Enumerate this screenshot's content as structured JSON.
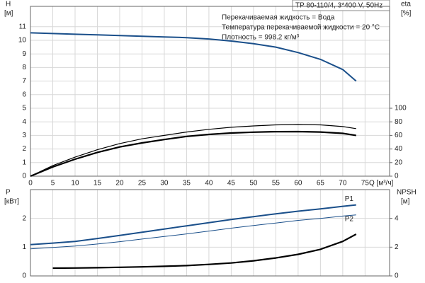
{
  "chart_data": [
    {
      "type": "line",
      "header": "TP 80-110/4, 3*400 V, 50Hz",
      "annotations": [
        "Перекачиваемая жидкость = Вода",
        "Температура перекачиваемой жидкости = 20 °C",
        "Плотность = 998.2 кг/м³"
      ],
      "ylabel": "H",
      "yunit": "[м]",
      "y2label": "eta",
      "y2unit": "[%]",
      "xlabel": "Q [м³/ч]",
      "x": [
        0,
        5,
        10,
        15,
        20,
        25,
        30,
        35,
        40,
        45,
        50,
        55,
        60,
        65,
        70,
        73
      ],
      "xlim": [
        0,
        80.5
      ],
      "xticks": [
        0,
        5,
        10,
        15,
        20,
        25,
        30,
        35,
        40,
        45,
        50,
        55,
        60,
        65,
        70,
        75
      ],
      "ylim": [
        0,
        12.5
      ],
      "yticks": [
        0,
        1,
        2,
        3,
        4,
        5,
        6,
        7,
        8,
        9,
        10,
        11
      ],
      "y2lim": [
        0,
        250
      ],
      "y2ticks": [
        0,
        20,
        40,
        60,
        80,
        100
      ],
      "grid": true,
      "series": [
        {
          "color": "#1a4f8a",
          "width": 2,
          "values": [
            10.55,
            10.5,
            10.45,
            10.4,
            10.35,
            10.3,
            10.25,
            10.2,
            10.1,
            9.95,
            9.75,
            9.5,
            9.1,
            8.6,
            7.85,
            7.0
          ]
        },
        {
          "color": "#000000",
          "width": 1.2,
          "axis": "y2",
          "values": [
            0,
            15.5,
            28,
            39,
            48,
            55,
            60,
            65,
            69,
            72,
            74,
            75.5,
            76,
            75.5,
            73,
            70
          ]
        },
        {
          "color": "#000000",
          "width": 2.2,
          "axis": "y2",
          "values": [
            0,
            13.5,
            25,
            35,
            43,
            49,
            54,
            58.5,
            61.5,
            63.5,
            64.8,
            65.5,
            65.6,
            65,
            63,
            60
          ]
        }
      ]
    },
    {
      "type": "line",
      "ylabel": "P",
      "yunit": "[кВт]",
      "y2label": "NPSH",
      "y2unit": "[м]",
      "x": [
        0,
        5,
        10,
        15,
        20,
        25,
        30,
        35,
        40,
        45,
        50,
        55,
        60,
        65,
        70,
        73
      ],
      "xlim": [
        0,
        80.5
      ],
      "ylim": [
        0,
        3
      ],
      "yticks": [
        0,
        1,
        2
      ],
      "y2lim": [
        0,
        6
      ],
      "y2ticks": [
        0,
        2,
        4
      ],
      "grid": true,
      "series": [
        {
          "name": "P1",
          "color": "#1a4f8a",
          "width": 2,
          "values": [
            1.09,
            1.14,
            1.2,
            1.3,
            1.41,
            1.52,
            1.63,
            1.74,
            1.85,
            1.96,
            2.06,
            2.16,
            2.25,
            2.33,
            2.42,
            2.47
          ]
        },
        {
          "name": "P2",
          "color": "#1a4f8a",
          "width": 1,
          "values": [
            0.94,
            0.99,
            1.04,
            1.11,
            1.19,
            1.28,
            1.37,
            1.46,
            1.56,
            1.66,
            1.75,
            1.84,
            1.93,
            2.0,
            2.08,
            2.12
          ]
        },
        {
          "color": "#000000",
          "width": 2.2,
          "axis": "y2",
          "values": [
            null,
            0.54,
            0.55,
            0.57,
            0.6,
            0.63,
            0.67,
            0.72,
            0.8,
            0.9,
            1.05,
            1.25,
            1.5,
            1.85,
            2.4,
            2.9
          ]
        }
      ]
    }
  ]
}
